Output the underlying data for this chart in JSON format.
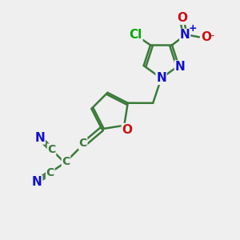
{
  "bg_color": "#efefef",
  "bond_color": "#3a7a3a",
  "bond_width": 1.8,
  "atom_colors": {
    "N": "#1010cc",
    "O": "#cc1010",
    "Cl": "#00aa00",
    "C": "#3a7a3a"
  },
  "font_size": 11,
  "font_size_small": 9
}
